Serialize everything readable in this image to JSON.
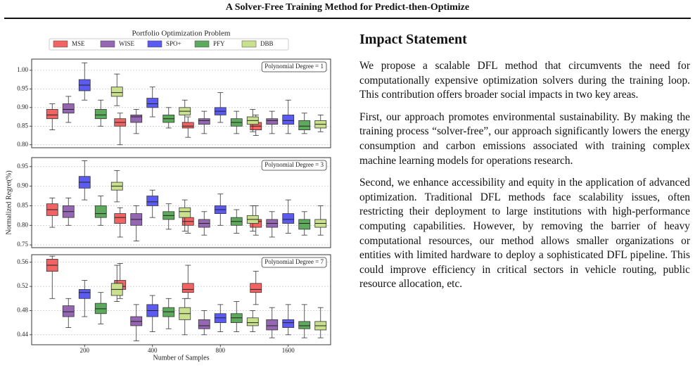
{
  "header": {
    "title": "A Solver-Free Training Method for Predict-then-Optimize"
  },
  "chart_data": [
    {
      "type": "box",
      "title": "Portfolio Optimization Problem",
      "annotation": "Polynomial Degree = 1",
      "series": [
        {
          "name": "MSE",
          "color": "#f26464",
          "values": [
            [
              0.84,
              0.87,
              0.88,
              0.895,
              0.91
            ],
            [
              0.8,
              0.85,
              0.86,
              0.87,
              0.885
            ],
            [
              0.82,
              0.845,
              0.85,
              0.86,
              0.875
            ],
            [
              0.825,
              0.84,
              0.85,
              0.86,
              0.88
            ]
          ]
        },
        {
          "name": "WISE",
          "color": "#9567b3",
          "values": [
            [
              0.86,
              0.885,
              0.895,
              0.91,
              0.93
            ],
            [
              0.83,
              0.86,
              0.875,
              0.88,
              0.895
            ],
            [
              0.83,
              0.855,
              0.865,
              0.87,
              0.89
            ],
            [
              0.83,
              0.855,
              0.865,
              0.87,
              0.89
            ]
          ]
        },
        {
          "name": "SPO+",
          "color": "#5b5bf2",
          "values": [
            [
              0.92,
              0.945,
              0.96,
              0.975,
              1.02
            ],
            [
              0.875,
              0.9,
              0.91,
              0.925,
              0.955
            ],
            [
              0.86,
              0.88,
              0.89,
              0.9,
              0.94
            ],
            [
              0.83,
              0.855,
              0.865,
              0.88,
              0.92
            ]
          ]
        },
        {
          "name": "PFY",
          "color": "#5daa5d",
          "values": [
            [
              0.85,
              0.87,
              0.88,
              0.895,
              0.92
            ],
            [
              0.845,
              0.86,
              0.87,
              0.88,
              0.9
            ],
            [
              0.83,
              0.85,
              0.86,
              0.87,
              0.89
            ],
            [
              0.83,
              0.84,
              0.85,
              0.865,
              0.885
            ]
          ]
        },
        {
          "name": "DBB",
          "color": "#c9e08c",
          "values": [
            [
              0.905,
              0.93,
              0.94,
              0.955,
              0.99
            ],
            [
              0.86,
              0.88,
              0.89,
              0.9,
              0.92
            ],
            [
              0.835,
              0.855,
              0.865,
              0.875,
              0.895
            ],
            [
              0.835,
              0.845,
              0.855,
              0.865,
              0.88
            ]
          ]
        }
      ],
      "ylim": [
        0.792,
        1.03
      ],
      "yticks": [
        {
          "value": 0.8,
          "label": "0.80"
        },
        {
          "value": 0.85,
          "label": "0.85"
        },
        {
          "value": 0.9,
          "label": "0.90"
        },
        {
          "value": 0.95,
          "label": "0.95"
        },
        {
          "value": 1.0,
          "label": "1.00"
        }
      ],
      "grid": true
    },
    {
      "type": "box",
      "annotation": "Polynomial Degree = 3",
      "y_label": "Normalized Regret(%)",
      "series": [
        {
          "values": [
            [
              0.795,
              0.825,
              0.84,
              0.855,
              0.87
            ],
            [
              0.77,
              0.805,
              0.82,
              0.83,
              0.845
            ],
            [
              0.78,
              0.8,
              0.81,
              0.82,
              0.84
            ],
            [
              0.775,
              0.795,
              0.81,
              0.815,
              0.85
            ]
          ]
        },
        {
          "values": [
            [
              0.8,
              0.82,
              0.835,
              0.85,
              0.87
            ],
            [
              0.76,
              0.8,
              0.815,
              0.83,
              0.85
            ],
            [
              0.775,
              0.795,
              0.805,
              0.815,
              0.835
            ],
            [
              0.77,
              0.795,
              0.805,
              0.815,
              0.835
            ]
          ]
        },
        {
          "values": [
            [
              0.865,
              0.895,
              0.91,
              0.925,
              0.965
            ],
            [
              0.82,
              0.85,
              0.86,
              0.875,
              0.89
            ],
            [
              0.8,
              0.83,
              0.84,
              0.85,
              0.88
            ],
            [
              0.78,
              0.805,
              0.815,
              0.83,
              0.865
            ]
          ]
        },
        {
          "values": [
            [
              0.8,
              0.82,
              0.83,
              0.85,
              0.875
            ],
            [
              0.79,
              0.815,
              0.825,
              0.835,
              0.855
            ],
            [
              0.78,
              0.8,
              0.81,
              0.82,
              0.84
            ],
            [
              0.775,
              0.79,
              0.805,
              0.815,
              0.835
            ]
          ]
        },
        {
          "values": [
            [
              0.86,
              0.89,
              0.9,
              0.91,
              0.94
            ],
            [
              0.785,
              0.82,
              0.835,
              0.845,
              0.865
            ],
            [
              0.785,
              0.805,
              0.815,
              0.825,
              0.85
            ],
            [
              0.775,
              0.795,
              0.805,
              0.815,
              0.85
            ]
          ]
        }
      ],
      "ylim": [
        0.743,
        0.973
      ],
      "yticks": [
        {
          "value": 0.75,
          "label": "0.75"
        },
        {
          "value": 0.8,
          "label": "0.80"
        },
        {
          "value": 0.85,
          "label": "0.85"
        },
        {
          "value": 0.9,
          "label": "0.90"
        },
        {
          "value": 0.95,
          "label": "0.95"
        }
      ],
      "grid": true
    },
    {
      "type": "box",
      "annotation": "Polynomial Degree = 7",
      "x_label": "Number of Samples",
      "categories": [
        "200",
        "400",
        "800",
        "1600"
      ],
      "series": [
        {
          "values": [
            [
              0.5,
              0.545,
              0.555,
              0.565,
              0.57
            ],
            [
              0.5,
              0.515,
              0.52,
              0.53,
              0.558
            ],
            [
              0.5,
              0.51,
              0.515,
              0.525,
              0.555
            ],
            [
              0.49,
              0.51,
              0.515,
              0.525,
              0.545
            ]
          ]
        },
        {
          "values": [
            [
              0.452,
              0.47,
              0.478,
              0.488,
              0.5
            ],
            [
              0.43,
              0.455,
              0.462,
              0.47,
              0.49
            ],
            [
              0.44,
              0.45,
              0.455,
              0.465,
              0.48
            ],
            [
              0.435,
              0.448,
              0.455,
              0.465,
              0.485
            ]
          ]
        },
        {
          "values": [
            [
              0.47,
              0.5,
              0.51,
              0.515,
              0.53
            ],
            [
              0.445,
              0.47,
              0.48,
              0.49,
              0.505
            ],
            [
              0.445,
              0.46,
              0.468,
              0.475,
              0.49
            ],
            [
              0.44,
              0.452,
              0.46,
              0.465,
              0.49
            ]
          ]
        },
        {
          "values": [
            [
              0.458,
              0.475,
              0.483,
              0.492,
              0.51
            ],
            [
              0.45,
              0.47,
              0.478,
              0.485,
              0.5
            ],
            [
              0.445,
              0.46,
              0.468,
              0.475,
              0.495
            ],
            [
              0.435,
              0.45,
              0.455,
              0.462,
              0.49
            ]
          ]
        },
        {
          "values": [
            [
              0.495,
              0.505,
              0.515,
              0.525,
              0.555
            ],
            [
              0.44,
              0.465,
              0.475,
              0.485,
              0.5
            ],
            [
              0.445,
              0.455,
              0.46,
              0.468,
              0.48
            ],
            [
              0.435,
              0.448,
              0.455,
              0.462,
              0.485
            ]
          ]
        }
      ],
      "ylim": [
        0.4235,
        0.5725
      ],
      "yticks": [
        0.44,
        0.48,
        0.52,
        0.56
      ],
      "grid": true
    }
  ],
  "impact": {
    "heading": "Impact Statement",
    "paragraphs": [
      "We propose a scalable DFL method that circumvents the need for computationally expensive optimization solvers during the training loop. This contribution offers broader social impacts in two key areas.",
      "First, our approach promotes environmental sustainability. By making the training process “solver-free”, our approach significantly lowers the energy consumption and carbon emissions associated with training complex machine learning models for operations research.",
      "Second, we enhance accessibility and equity in the application of advanced optimization. Traditional DFL methods face scalability issues, often restricting their deployment to large institutions with high-performance computing capabilities. However, by removing the barrier of heavy computational resources, our method allows smaller organizations or entities with limited hardware to deploy a sophisticated DFL pipeline. This could improve efficiency in critical sectors in vehicle routing, public resource allocation, etc."
    ]
  }
}
